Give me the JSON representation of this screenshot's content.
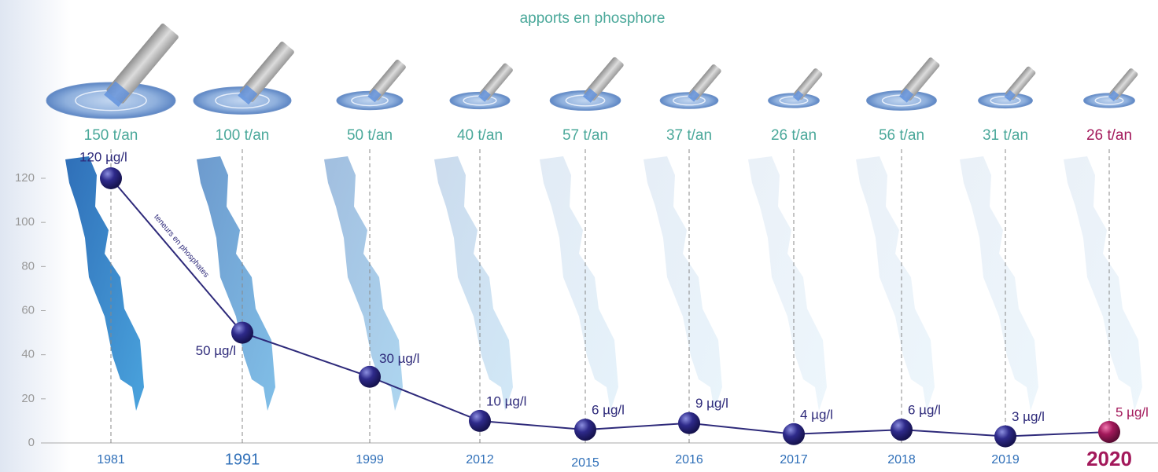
{
  "chart_data": {
    "type": "line",
    "title": "apports en phosphore",
    "categories": [
      "1981",
      "1991",
      "1999",
      "2012",
      "2015",
      "2016",
      "2017",
      "2018",
      "2019",
      "2020"
    ],
    "series": [
      {
        "name": "apports en phosphore",
        "color": "#4aa89a",
        "values": [
          150,
          100,
          50,
          40,
          57,
          37,
          26,
          56,
          31,
          26
        ],
        "value_labels": [
          "150 t/an",
          "100 t/an",
          "50 t/an",
          "40 t/an",
          "57 t/an",
          "37 t/an",
          "26 t/an",
          "56 t/an",
          "31 t/an",
          "26 t/an"
        ]
      },
      {
        "name": "teneurs en phosphates",
        "color": "#2e2a7a",
        "values": [
          120,
          50,
          30,
          10,
          6,
          9,
          4,
          6,
          3,
          5
        ],
        "value_labels": [
          "120 µg/l",
          "50 µg/l",
          "30 µg/l",
          "10 µg/l",
          "6 µg/l",
          "9 µg/l",
          "4 µg/l",
          "6 µg/l",
          "3 µg/l",
          "5 µg/l"
        ]
      }
    ],
    "highlight_color": "#a3195b",
    "ylim": [
      0,
      120
    ],
    "yticks": [
      0,
      20,
      40,
      60,
      80,
      100,
      120
    ]
  }
}
